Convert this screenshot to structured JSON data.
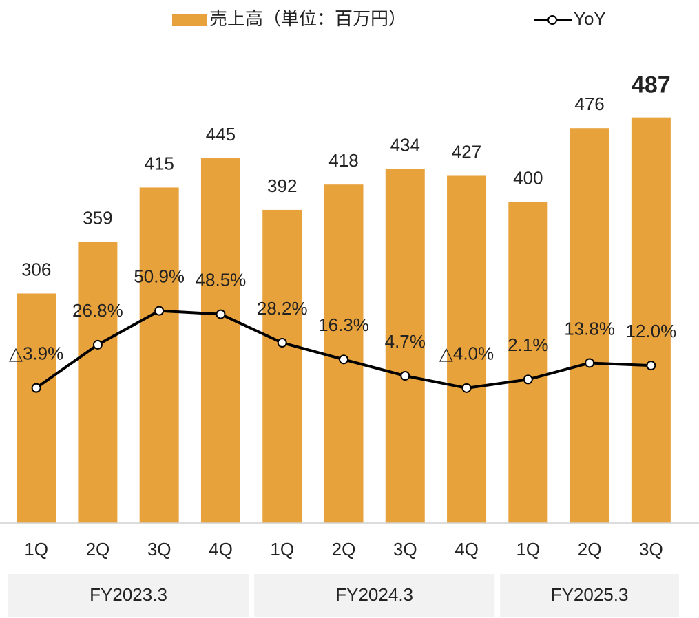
{
  "chart_data": {
    "type": "bar+line",
    "categories": [
      "1Q",
      "2Q",
      "3Q",
      "4Q",
      "1Q",
      "2Q",
      "3Q",
      "4Q",
      "1Q",
      "2Q",
      "3Q"
    ],
    "groups": [
      "FY2023.3",
      "FY2024.3",
      "FY2025.3"
    ],
    "series": [
      {
        "name": "売上高（単位：百万円）",
        "type": "bar",
        "color": "#e8a23c",
        "values": [
          306,
          359,
          415,
          445,
          392,
          418,
          434,
          427,
          400,
          476,
          487
        ]
      },
      {
        "name": "YoY",
        "type": "line",
        "axis": "y2",
        "color": "#000000",
        "values": [
          -3.9,
          26.8,
          50.9,
          48.5,
          28.2,
          16.3,
          4.7,
          -4.0,
          2.1,
          13.8,
          12.0
        ],
        "value_labels": [
          "△3.9%",
          "26.8%",
          "50.9%",
          "48.5%",
          "28.2%",
          "16.3%",
          "4.7%",
          "△4.0%",
          "2.1%",
          "13.8%",
          "12.0%"
        ]
      }
    ],
    "ylim": [
      70,
      537
    ],
    "y2lim": [
      -100,
      223
    ],
    "legend": "top"
  }
}
